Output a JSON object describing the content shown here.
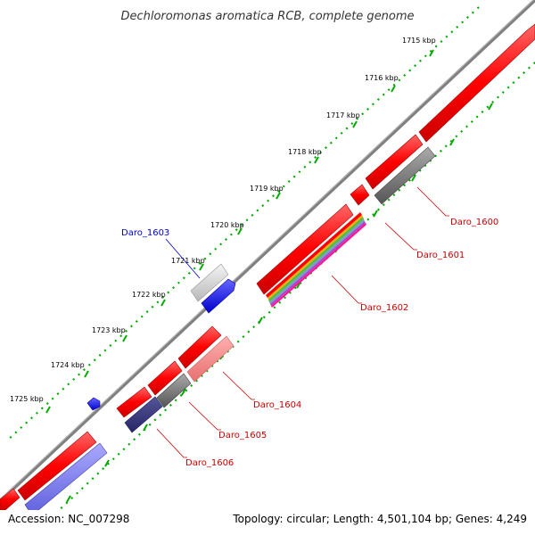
{
  "title": "Dechloromonas aromatica RCB, complete genome",
  "accession": "Accession: NC_007298",
  "summary": "Topology: circular; Length: 4,501,104 bp; Genes: 4,249",
  "colors": {
    "forward_gene": "#ff0000",
    "highlight_blue": "#0000ff",
    "grey_feature": "#808080",
    "light_red": "#ff8080",
    "dark_navy": "#333380",
    "lavender": "#7f7fff",
    "tick_green": "#00aa00",
    "backbone": "#808080",
    "label_red": "#cc0000",
    "label_blue": "#0000cc"
  },
  "ticks": [
    {
      "label": "1715 kbp"
    },
    {
      "label": "1716 kbp"
    },
    {
      "label": "1717 kbp"
    },
    {
      "label": "1718 kbp"
    },
    {
      "label": "1719 kbp"
    },
    {
      "label": "1720 kbp"
    },
    {
      "label": "1721 kbp"
    },
    {
      "label": "1722 kbp"
    },
    {
      "label": "1723 kbp"
    },
    {
      "label": "1724 kbp"
    },
    {
      "label": "1725 kbp"
    }
  ],
  "gene_labels": [
    {
      "id": "Daro_1600",
      "color": "#cc0000"
    },
    {
      "id": "Daro_1601",
      "color": "#cc0000"
    },
    {
      "id": "Daro_1602",
      "color": "#cc0000"
    },
    {
      "id": "Daro_1603",
      "color": "#0000cc"
    },
    {
      "id": "Daro_1604",
      "color": "#cc0000"
    },
    {
      "id": "Daro_1605",
      "color": "#cc0000"
    },
    {
      "id": "Daro_1606",
      "color": "#cc0000"
    }
  ]
}
